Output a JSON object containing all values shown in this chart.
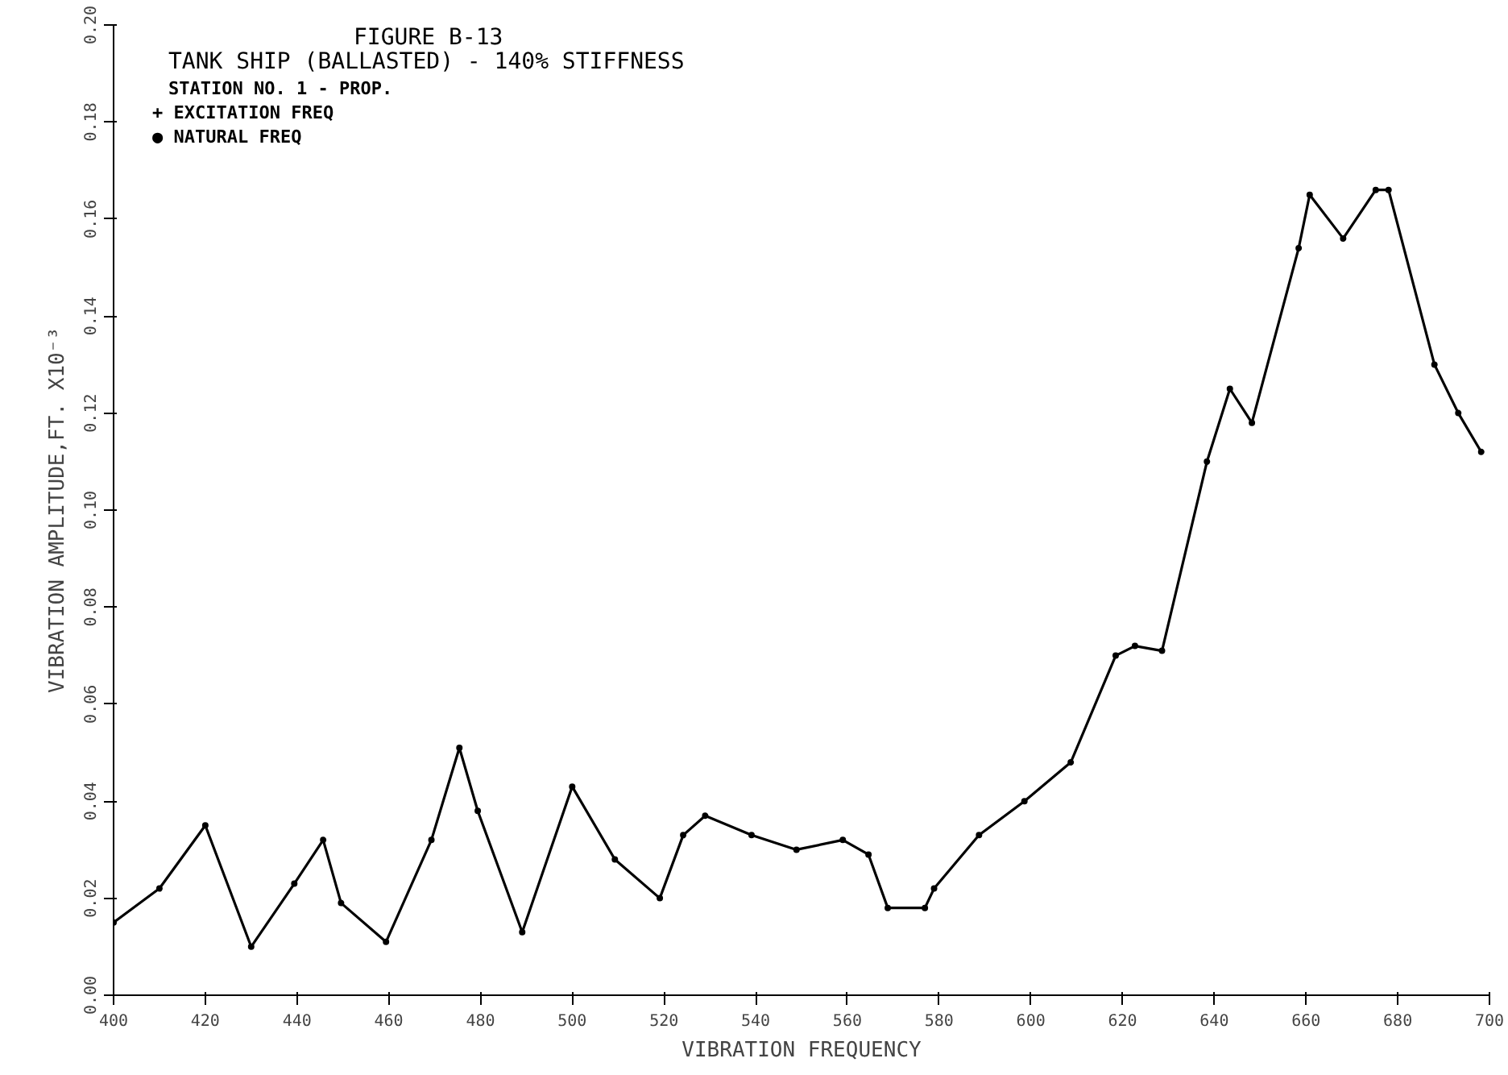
{
  "chart_data": {
    "type": "line",
    "title": "FIGURE B-13",
    "subtitle": "TANK SHIP (BALLASTED) - 140% STIFFNESS",
    "xlabel": "VIBRATION FREQUENCY",
    "ylabel": "VIBRATION AMPLITUDE,FT. X10⁻³",
    "annotations": [
      "STATION NO. 1 - PROP.",
      "+  EXCITATION FREQ",
      "●  NATURAL FREQ"
    ],
    "marker": "circle",
    "line_style": "solid",
    "grid": false,
    "xlim": [
      400,
      700
    ],
    "xticks": [
      400,
      420,
      440,
      460,
      480,
      500,
      520,
      540,
      560,
      580,
      600,
      620,
      640,
      660,
      680,
      700
    ],
    "ylim": [
      0,
      0.2
    ],
    "yticks": [
      {
        "value": 0,
        "label": "0.00"
      },
      {
        "value": 0.02,
        "label": "0.02"
      },
      {
        "value": 0.04,
        "label": "0.04"
      },
      {
        "value": 0.06,
        "label": "0.06"
      },
      {
        "value": 0.08,
        "label": "0.08"
      },
      {
        "value": 0.1,
        "label": "0.10"
      },
      {
        "value": 0.12,
        "label": "0.12"
      },
      {
        "value": 0.14,
        "label": "0.14"
      },
      {
        "value": 0.16,
        "label": "0.16"
      },
      {
        "value": 0.18,
        "label": "0.18"
      },
      {
        "value": 0.2,
        "label": "0.20"
      }
    ],
    "series": [
      {
        "color": "#000000",
        "x": [
          400,
          410,
          420,
          430,
          439.4,
          445.7,
          449.6,
          459.4,
          469.3,
          475.4,
          479.4,
          489.1,
          500,
          509.3,
          519.1,
          524.2,
          529,
          539.1,
          548.9,
          559,
          564.6,
          568.8,
          576.9,
          578.9,
          588.7,
          598.6,
          608.7,
          618.5,
          622.7,
          628.6,
          638.4,
          643.4,
          648.2,
          658.4,
          660.8,
          668.1,
          675.2,
          678,
          688,
          693.2,
          698.2
        ],
        "values": [
          0.015,
          0.022,
          0.035,
          0.01,
          0.023,
          0.032,
          0.019,
          0.011,
          0.032,
          0.051,
          0.038,
          0.013,
          0.043,
          0.028,
          0.02,
          0.033,
          0.037,
          0.033,
          0.03,
          0.032,
          0.029,
          0.018,
          0.018,
          0.022,
          0.033,
          0.04,
          0.048,
          0.07,
          0.072,
          0.071,
          0.11,
          0.125,
          0.118,
          0.154,
          0.165,
          0.156,
          0.166,
          0.166,
          0.13,
          0.12,
          0.112
        ]
      }
    ]
  }
}
